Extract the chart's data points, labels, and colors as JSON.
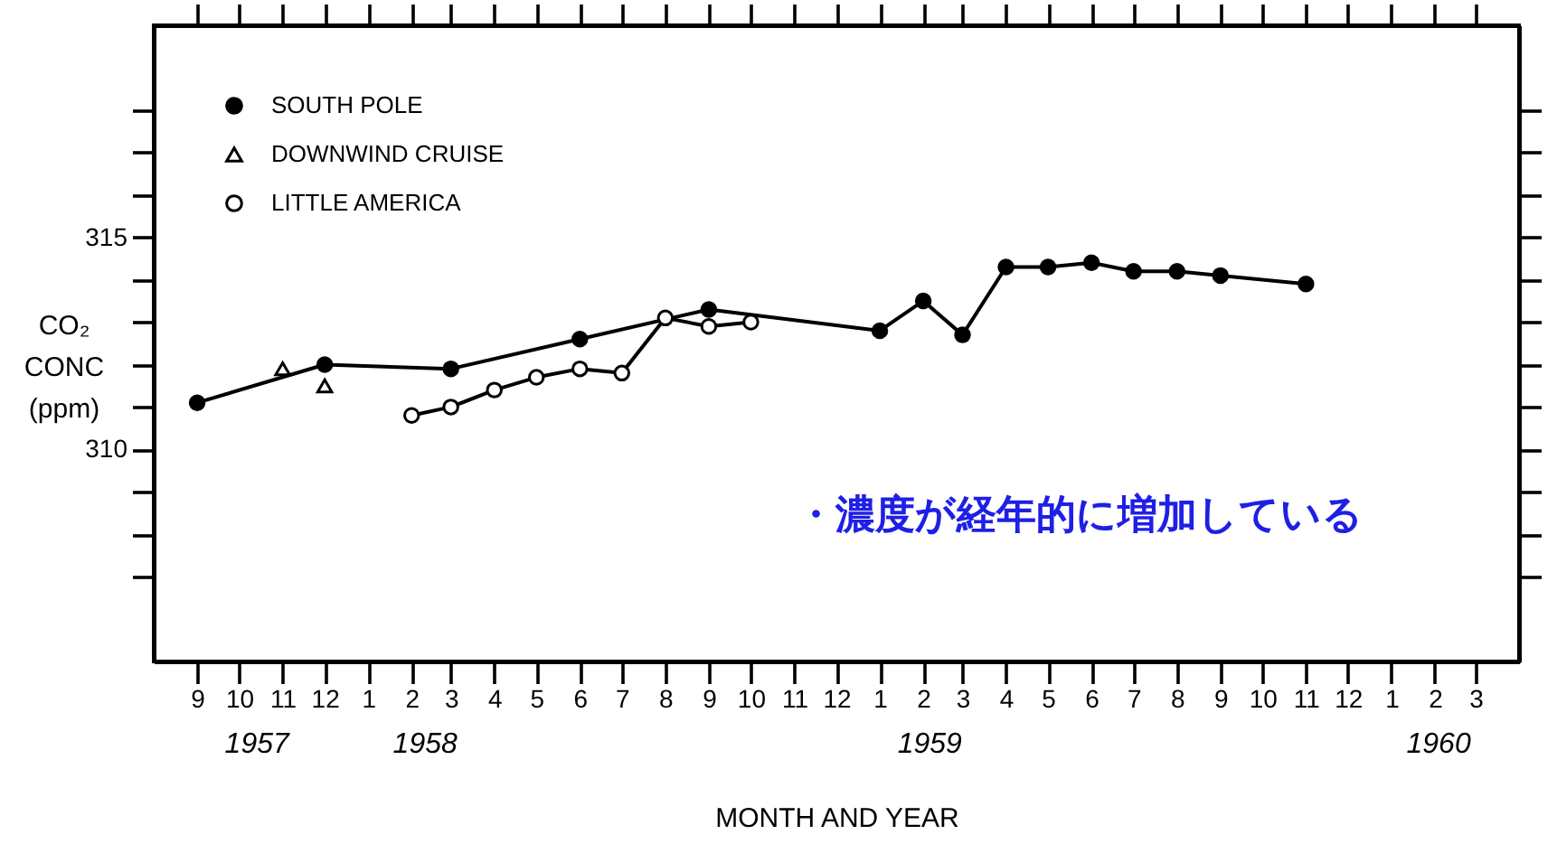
{
  "chart_data": {
    "type": "line",
    "xlabel": "MONTH AND YEAR",
    "ylabel": "CO₂ CONC (ppm)",
    "annotations": [
      "・濃度が経年的に増加している"
    ],
    "series": [
      {
        "name": "SOUTH POLE",
        "color": "#000000",
        "marker": "circle",
        "x": [
          "1957-09",
          "1957-12",
          "1958-03",
          "1958-06",
          "1958-09",
          "1959-01",
          "1959-02",
          "1959-03",
          "1959-04",
          "1959-05",
          "1959-06",
          "1959-07",
          "1959-08",
          "1959-09",
          "1959-11"
        ],
        "values": [
          311.1,
          312.0,
          311.9,
          312.6,
          313.3,
          312.8,
          313.5,
          312.7,
          314.3,
          314.3,
          314.4,
          314.2,
          314.2,
          314.1,
          313.9
        ]
      },
      {
        "name": "DOWNWIND CRUISE",
        "type": "scatter",
        "color": "#000000",
        "marker": "triangle-open",
        "x": [
          "1957-11",
          "1957-12"
        ],
        "values": [
          311.9,
          311.5
        ]
      },
      {
        "name": "LITTLE AMERICA",
        "color": "#000000",
        "marker": "circle-open",
        "x": [
          "1958-02",
          "1958-03",
          "1958-04",
          "1958-05",
          "1958-06",
          "1958-07",
          "1958-08",
          "1958-09",
          "1958-10"
        ],
        "values": [
          310.8,
          311.0,
          311.4,
          311.7,
          311.9,
          311.8,
          313.1,
          312.9,
          313.0
        ]
      }
    ],
    "xlim": [
      "1957-08",
      "1960-04"
    ],
    "ylim": [
      305,
      320
    ],
    "xticks": [
      {
        "value": "1957-09",
        "label": "9"
      },
      {
        "value": "1957-10",
        "label": "10"
      },
      {
        "value": "1957-11",
        "label": "11"
      },
      {
        "value": "1957-12",
        "label": "12"
      },
      {
        "value": "1958-01",
        "label": "1"
      },
      {
        "value": "1958-02",
        "label": "2"
      },
      {
        "value": "1958-03",
        "label": "3"
      },
      {
        "value": "1958-04",
        "label": "4"
      },
      {
        "value": "1958-05",
        "label": "5"
      },
      {
        "value": "1958-06",
        "label": "6"
      },
      {
        "value": "1958-07",
        "label": "7"
      },
      {
        "value": "1958-08",
        "label": "8"
      },
      {
        "value": "1958-09",
        "label": "9"
      },
      {
        "value": "1958-10",
        "label": "10"
      },
      {
        "value": "1958-11",
        "label": "11"
      },
      {
        "value": "1958-12",
        "label": "12"
      },
      {
        "value": "1959-01",
        "label": "1"
      },
      {
        "value": "1959-02",
        "label": "2"
      },
      {
        "value": "1959-03",
        "label": "3"
      },
      {
        "value": "1959-04",
        "label": "4"
      },
      {
        "value": "1959-05",
        "label": "5"
      },
      {
        "value": "1959-06",
        "label": "6"
      },
      {
        "value": "1959-07",
        "label": "7"
      },
      {
        "value": "1959-08",
        "label": "8"
      },
      {
        "value": "1959-09",
        "label": "9"
      },
      {
        "value": "1959-10",
        "label": "10"
      },
      {
        "value": "1959-11",
        "label": "11"
      },
      {
        "value": "1959-12",
        "label": "12"
      },
      {
        "value": "1960-01",
        "label": "1"
      },
      {
        "value": "1960-02",
        "label": "2"
      },
      {
        "value": "1960-03",
        "label": "3"
      }
    ],
    "yticks": [
      {
        "value": 307,
        "label": null
      },
      {
        "value": 308,
        "label": null
      },
      {
        "value": 309,
        "label": null
      },
      310,
      {
        "value": 311,
        "label": null
      },
      {
        "value": 312,
        "label": null
      },
      {
        "value": 313,
        "label": null
      },
      {
        "value": 314,
        "label": null
      },
      315,
      {
        "value": 316,
        "label": null
      },
      {
        "value": 317,
        "label": null
      },
      {
        "value": 318,
        "label": null
      }
    ],
    "x2lim": [
      "1957-08",
      "1960-04"
    ],
    "x2ticks": [
      {
        "value": "1957-10-13",
        "label": "1957"
      },
      {
        "value": "1958-02-10",
        "label": "1958"
      },
      {
        "value": "1959-02-05",
        "label": "1959"
      },
      {
        "value": "1960-02-03",
        "label": "1960"
      }
    ],
    "legend": "top left",
    "line_style": "solid"
  }
}
